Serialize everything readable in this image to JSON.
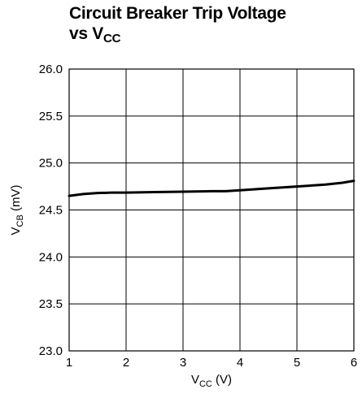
{
  "chart_data": {
    "type": "line",
    "title": {
      "line1": "Circuit Breaker Trip Voltage",
      "line2_prefix": "vs V",
      "line2_sub": "CC"
    },
    "xlabel": {
      "main": "V",
      "sub": "CC",
      "rest": " (V)"
    },
    "ylabel": {
      "main": "V",
      "sub": "CB",
      "rest": " (mV)"
    },
    "xlim": [
      1,
      6
    ],
    "ylim": [
      23.0,
      26.0
    ],
    "x_ticks": [
      1,
      2,
      3,
      4,
      5,
      6
    ],
    "x_tick_labels": [
      "1",
      "2",
      "3",
      "4",
      "5",
      "6"
    ],
    "y_ticks": [
      23.0,
      23.5,
      24.0,
      24.5,
      25.0,
      25.5,
      26.0
    ],
    "y_tick_labels": [
      "23.0",
      "23.5",
      "24.0",
      "24.5",
      "25.0",
      "25.5",
      "26.0"
    ],
    "grid": true,
    "series": [
      {
        "x": [
          1.0,
          1.25,
          1.5,
          1.75,
          2.0,
          2.5,
          3.0,
          3.5,
          3.75,
          4.0,
          4.5,
          5.0,
          5.5,
          5.8,
          6.0
        ],
        "y": [
          24.65,
          24.67,
          24.68,
          24.685,
          24.685,
          24.69,
          24.695,
          24.7,
          24.7,
          24.71,
          24.73,
          24.75,
          24.77,
          24.79,
          24.81
        ],
        "color": "#000000"
      }
    ]
  }
}
